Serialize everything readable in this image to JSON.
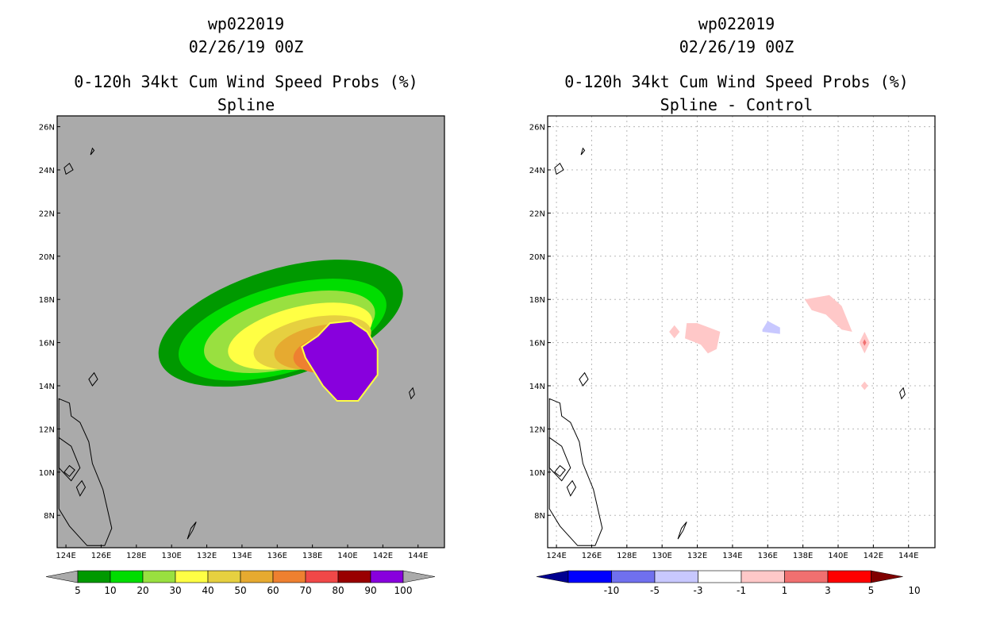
{
  "chart_data": [
    {
      "type": "heatmap",
      "title": [
        "wp022019",
        "02/26/19 00Z",
        "0-120h 34kt Cum Wind Speed Probs (%)",
        "Spline"
      ],
      "x_ticks": [
        "124E",
        "126E",
        "128E",
        "130E",
        "132E",
        "134E",
        "136E",
        "138E",
        "140E",
        "142E",
        "144E"
      ],
      "y_ticks": [
        "8N",
        "10N",
        "12N",
        "14N",
        "16N",
        "18N",
        "20N",
        "22N",
        "24N",
        "26N"
      ],
      "xlim": [
        123.5,
        145.5
      ],
      "ylim": [
        6.5,
        26.5
      ],
      "background": "#aaaaaa",
      "colorbar": {
        "labels": [
          "5",
          "10",
          "20",
          "30",
          "40",
          "50",
          "60",
          "70",
          "80",
          "90",
          "100"
        ],
        "colors": [
          "#009900",
          "#00dd00",
          "#99e040",
          "#ffff44",
          "#e6d040",
          "#e6aa30",
          "#ee8030",
          "#f04848",
          "#990000",
          "#8800dd"
        ],
        "end_color": "#aaaaaa"
      },
      "contour_levels": [
        {
          "level": 5,
          "color": "#009900",
          "center": [
            136.2,
            16.9
          ],
          "rx": 7.2,
          "ry": 2.5,
          "angle": -17
        },
        {
          "level": 10,
          "color": "#00dd00",
          "center": [
            136.3,
            16.6
          ],
          "rx": 6.1,
          "ry": 2.0,
          "angle": -16
        },
        {
          "level": 20,
          "color": "#99e040",
          "center": [
            136.7,
            16.5
          ],
          "rx": 5.0,
          "ry": 1.65,
          "angle": -15
        },
        {
          "level": 30,
          "color": "#ffff44",
          "center": [
            137.3,
            16.3
          ],
          "rx": 4.2,
          "ry": 1.35,
          "angle": -14
        },
        {
          "level": 40,
          "color": "#e6d040",
          "center": [
            138.0,
            16.0
          ],
          "rx": 3.4,
          "ry": 1.15,
          "angle": -12
        },
        {
          "level": 50,
          "color": "#e6aa30",
          "center": [
            138.6,
            15.8
          ],
          "rx": 2.8,
          "ry": 1.0,
          "angle": -10
        },
        {
          "level": 60,
          "color": "#ee8030",
          "center": [
            139.2,
            15.5
          ],
          "rx": 2.3,
          "ry": 0.9,
          "angle": -8
        },
        {
          "level": 70,
          "color": "#f04848",
          "center": [
            139.6,
            15.3
          ],
          "rx": 1.9,
          "ry": 0.8,
          "angle": -5
        },
        {
          "level": 80,
          "color": "#990000",
          "center": [
            139.9,
            15.1
          ],
          "rx": 1.6,
          "ry": 0.7,
          "angle": 0
        }
      ],
      "max_region": {
        "level": 100,
        "color": "#8800dd",
        "lonlat": [
          [
            138.3,
            16.3
          ],
          [
            139.0,
            16.9
          ],
          [
            140.2,
            17.0
          ],
          [
            141.1,
            16.5
          ],
          [
            141.7,
            15.7
          ],
          [
            141.7,
            14.5
          ],
          [
            140.6,
            13.3
          ],
          [
            139.4,
            13.3
          ],
          [
            138.6,
            14.0
          ],
          [
            137.6,
            15.3
          ],
          [
            137.4,
            15.8
          ]
        ]
      }
    },
    {
      "type": "heatmap",
      "title": [
        "wp022019",
        "02/26/19 00Z",
        "0-120h 34kt Cum Wind Speed Probs (%)",
        "Spline - Control"
      ],
      "x_ticks": [
        "124E",
        "126E",
        "128E",
        "130E",
        "132E",
        "134E",
        "136E",
        "138E",
        "140E",
        "142E",
        "144E"
      ],
      "y_ticks": [
        "8N",
        "10N",
        "12N",
        "14N",
        "16N",
        "18N",
        "20N",
        "22N",
        "24N",
        "26N"
      ],
      "xlim": [
        123.5,
        145.5
      ],
      "ylim": [
        6.5,
        26.5
      ],
      "background": "#ffffff",
      "colorbar": {
        "labels": [
          "-10",
          "-5",
          "-3",
          "-1",
          "1",
          "3",
          "5",
          "10"
        ],
        "colors": [
          "#0000ff",
          "#7070ee",
          "#c8c8ff",
          "#ffffff",
          "#ffc8c8",
          "#f07070",
          "#ff0000"
        ],
        "end_left_color": "#000090",
        "end_right_color": "#800000"
      },
      "difference_patches": [
        {
          "range": "1 to 3",
          "color": "#ffc8c8",
          "lonlat": [
            [
              131.3,
              16.2
            ],
            [
              131.4,
              16.9
            ],
            [
              132.0,
              16.9
            ],
            [
              133.3,
              16.5
            ],
            [
              133.1,
              15.7
            ],
            [
              132.6,
              15.5
            ],
            [
              132.2,
              15.9
            ]
          ]
        },
        {
          "range": "1 to 3",
          "color": "#ffc8c8",
          "lonlat": [
            [
              130.4,
              16.5
            ],
            [
              130.7,
              16.8
            ],
            [
              131.0,
              16.5
            ],
            [
              130.7,
              16.2
            ]
          ]
        },
        {
          "range": "1 to 3",
          "color": "#ffc8c8",
          "lonlat": [
            [
              138.1,
              18.0
            ],
            [
              139.5,
              18.2
            ],
            [
              140.2,
              17.7
            ],
            [
              140.8,
              16.5
            ],
            [
              140.2,
              16.6
            ],
            [
              139.3,
              17.3
            ],
            [
              138.5,
              17.5
            ]
          ]
        },
        {
          "range": "1 to 3",
          "color": "#ffc8c8",
          "lonlat": [
            [
              141.2,
              16.0
            ],
            [
              141.5,
              16.5
            ],
            [
              141.8,
              16.0
            ],
            [
              141.5,
              15.5
            ]
          ]
        },
        {
          "range": "1 to 3",
          "color": "#ffc8c8",
          "lonlat": [
            [
              141.3,
              14.0
            ],
            [
              141.5,
              14.2
            ],
            [
              141.7,
              14.0
            ],
            [
              141.5,
              13.8
            ]
          ]
        },
        {
          "range": "3 to 5",
          "color": "#f07070",
          "lonlat": [
            [
              141.4,
              16.0
            ],
            [
              141.5,
              16.15
            ],
            [
              141.6,
              16.0
            ],
            [
              141.5,
              15.85
            ]
          ]
        },
        {
          "range": "-1 to -3",
          "color": "#c8c8ff",
          "lonlat": [
            [
              135.7,
              16.6
            ],
            [
              136.0,
              17.0
            ],
            [
              136.7,
              16.7
            ],
            [
              136.7,
              16.4
            ],
            [
              135.7,
              16.5
            ]
          ]
        }
      ]
    }
  ]
}
